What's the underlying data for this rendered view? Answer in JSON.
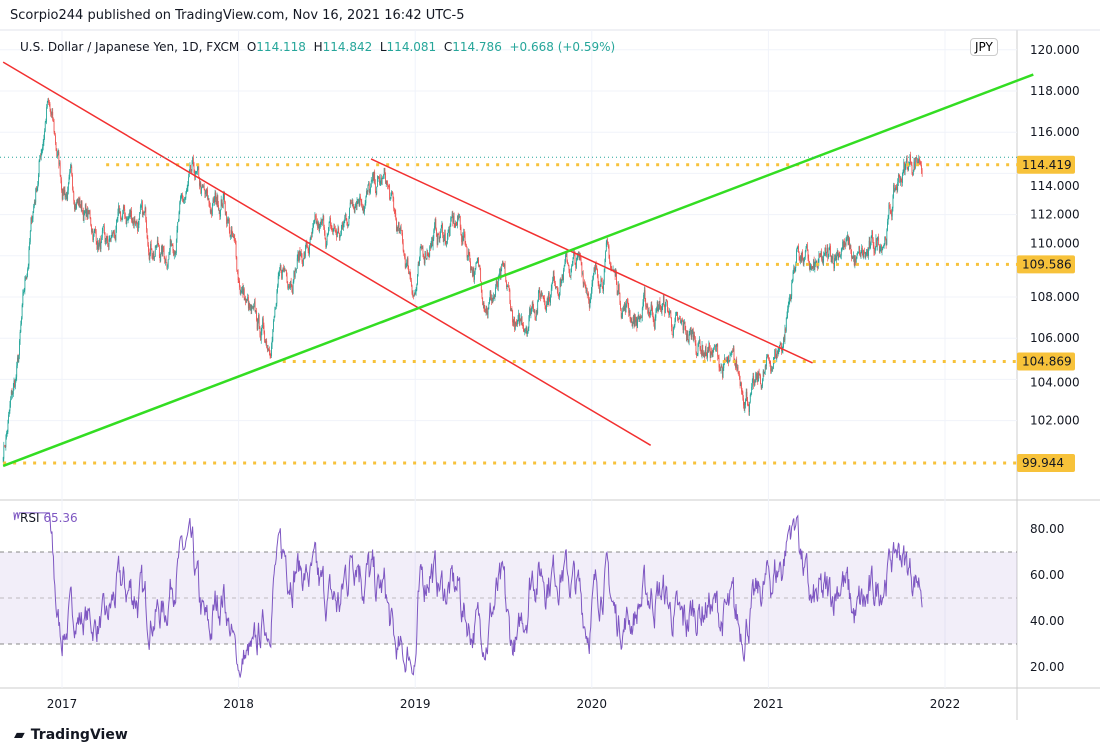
{
  "header": {
    "published": "Scorpio244 published on TradingView.com, Nov 16, 2021 16:42 UTC-5"
  },
  "legend": {
    "symbol": "U.S. Dollar / Japanese Yen, 1D, FXCM",
    "o_label": "O",
    "o": "114.118",
    "h_label": "H",
    "h": "114.842",
    "l_label": "L",
    "l": "114.081",
    "c_label": "C",
    "c": "114.786",
    "change": "+0.668 (+0.59%)"
  },
  "currency_button": "JPY",
  "rsi": {
    "label": "RSI",
    "value": "65.36"
  },
  "brand": "TradingView",
  "colors": {
    "up": "#26a69a",
    "down": "#ef5350",
    "rsi": "#7e57c2",
    "green_line": "#33dd22",
    "red_line": "#f23030",
    "level": "#f7c23a"
  },
  "chart_data": [
    {
      "type": "candlestick",
      "title": "U.S. Dollar / Japanese Yen, 1D, FXCM",
      "ylim": [
        99,
        120
      ],
      "yticks": [
        "102.000",
        "104.000",
        "106.000",
        "108.000",
        "110.000",
        "112.000",
        "114.000",
        "116.000",
        "118.000",
        "120.000"
      ],
      "xticks": [
        "2017",
        "2018",
        "2019",
        "2020",
        "2021",
        "2022"
      ],
      "monthly_close": [
        [
          "2016-09",
          100.6
        ],
        [
          "2016-10",
          104.5
        ],
        [
          "2016-11",
          112
        ],
        [
          "2016-12",
          117.5
        ],
        [
          "2017-01",
          113.5
        ],
        [
          "2017-02",
          113
        ],
        [
          "2017-03",
          111.5
        ],
        [
          "2017-04",
          110
        ],
        [
          "2017-05",
          111.5
        ],
        [
          "2017-06",
          112
        ],
        [
          "2017-07",
          111
        ],
        [
          "2017-08",
          110
        ],
        [
          "2017-09",
          112
        ],
        [
          "2017-10",
          113.5
        ],
        [
          "2017-11",
          112
        ],
        [
          "2017-12",
          113
        ],
        [
          "2018-01",
          109
        ],
        [
          "2018-02",
          106.5
        ],
        [
          "2018-03",
          106
        ],
        [
          "2018-04",
          109
        ],
        [
          "2018-05",
          110
        ],
        [
          "2018-06",
          110.5
        ],
        [
          "2018-07",
          111
        ],
        [
          "2018-08",
          111
        ],
        [
          "2018-09",
          113.5
        ],
        [
          "2018-10",
          113
        ],
        [
          "2018-11",
          113.5
        ],
        [
          "2018-12",
          110.5
        ],
        [
          "2019-01",
          108.5
        ],
        [
          "2019-02",
          111
        ],
        [
          "2019-03",
          111
        ],
        [
          "2019-04",
          111.5
        ],
        [
          "2019-05",
          109.5
        ],
        [
          "2019-06",
          108
        ],
        [
          "2019-07",
          108.5
        ],
        [
          "2019-08",
          106
        ],
        [
          "2019-09",
          108
        ],
        [
          "2019-10",
          108.5
        ],
        [
          "2019-11",
          109.5
        ],
        [
          "2019-12",
          109.5
        ],
        [
          "2020-01",
          108.5
        ],
        [
          "2020-02",
          110
        ],
        [
          "2020-03",
          108
        ],
        [
          "2020-04",
          107
        ],
        [
          "2020-05",
          107.5
        ],
        [
          "2020-06",
          107.5
        ],
        [
          "2020-07",
          106
        ],
        [
          "2020-08",
          106
        ],
        [
          "2020-09",
          105.5
        ],
        [
          "2020-10",
          104.5
        ],
        [
          "2020-11",
          104
        ],
        [
          "2020-12",
          103.2
        ],
        [
          "2021-01",
          104.5
        ],
        [
          "2021-02",
          106
        ],
        [
          "2021-03",
          110.5
        ],
        [
          "2021-04",
          109
        ],
        [
          "2021-05",
          109.5
        ],
        [
          "2021-06",
          110.8
        ],
        [
          "2021-07",
          109.5
        ],
        [
          "2021-08",
          110
        ],
        [
          "2021-09",
          111.5
        ],
        [
          "2021-10",
          114
        ],
        [
          "2021-11",
          114.8
        ]
      ],
      "levels": [
        {
          "label": "114.419",
          "value": 114.419,
          "from": "2017-04"
        },
        {
          "label": "109.586",
          "value": 109.586,
          "from": "2020-04"
        },
        {
          "label": "104.869",
          "value": 104.869,
          "from": "2018-04"
        },
        {
          "label": "99.944",
          "value": 99.944,
          "from": "2016-09"
        }
      ],
      "trendlines": [
        {
          "color": "red",
          "from": [
            "2016-09",
            119.4
          ],
          "to": [
            "2020-05",
            100.8
          ]
        },
        {
          "color": "red",
          "from": [
            "2018-10",
            114.7
          ],
          "to": [
            "2021-04",
            104.8
          ]
        },
        {
          "color": "green",
          "from": [
            "2016-09",
            99.8
          ],
          "to": [
            "2022-07",
            118.8
          ]
        }
      ],
      "last_price": 114.786
    },
    {
      "type": "line",
      "title": "RSI",
      "ylim": [
        15,
        87
      ],
      "yticks": [
        "20.00",
        "40.00",
        "60.00",
        "80.00"
      ],
      "bands": [
        30,
        50,
        70
      ],
      "last": 65.36
    }
  ]
}
